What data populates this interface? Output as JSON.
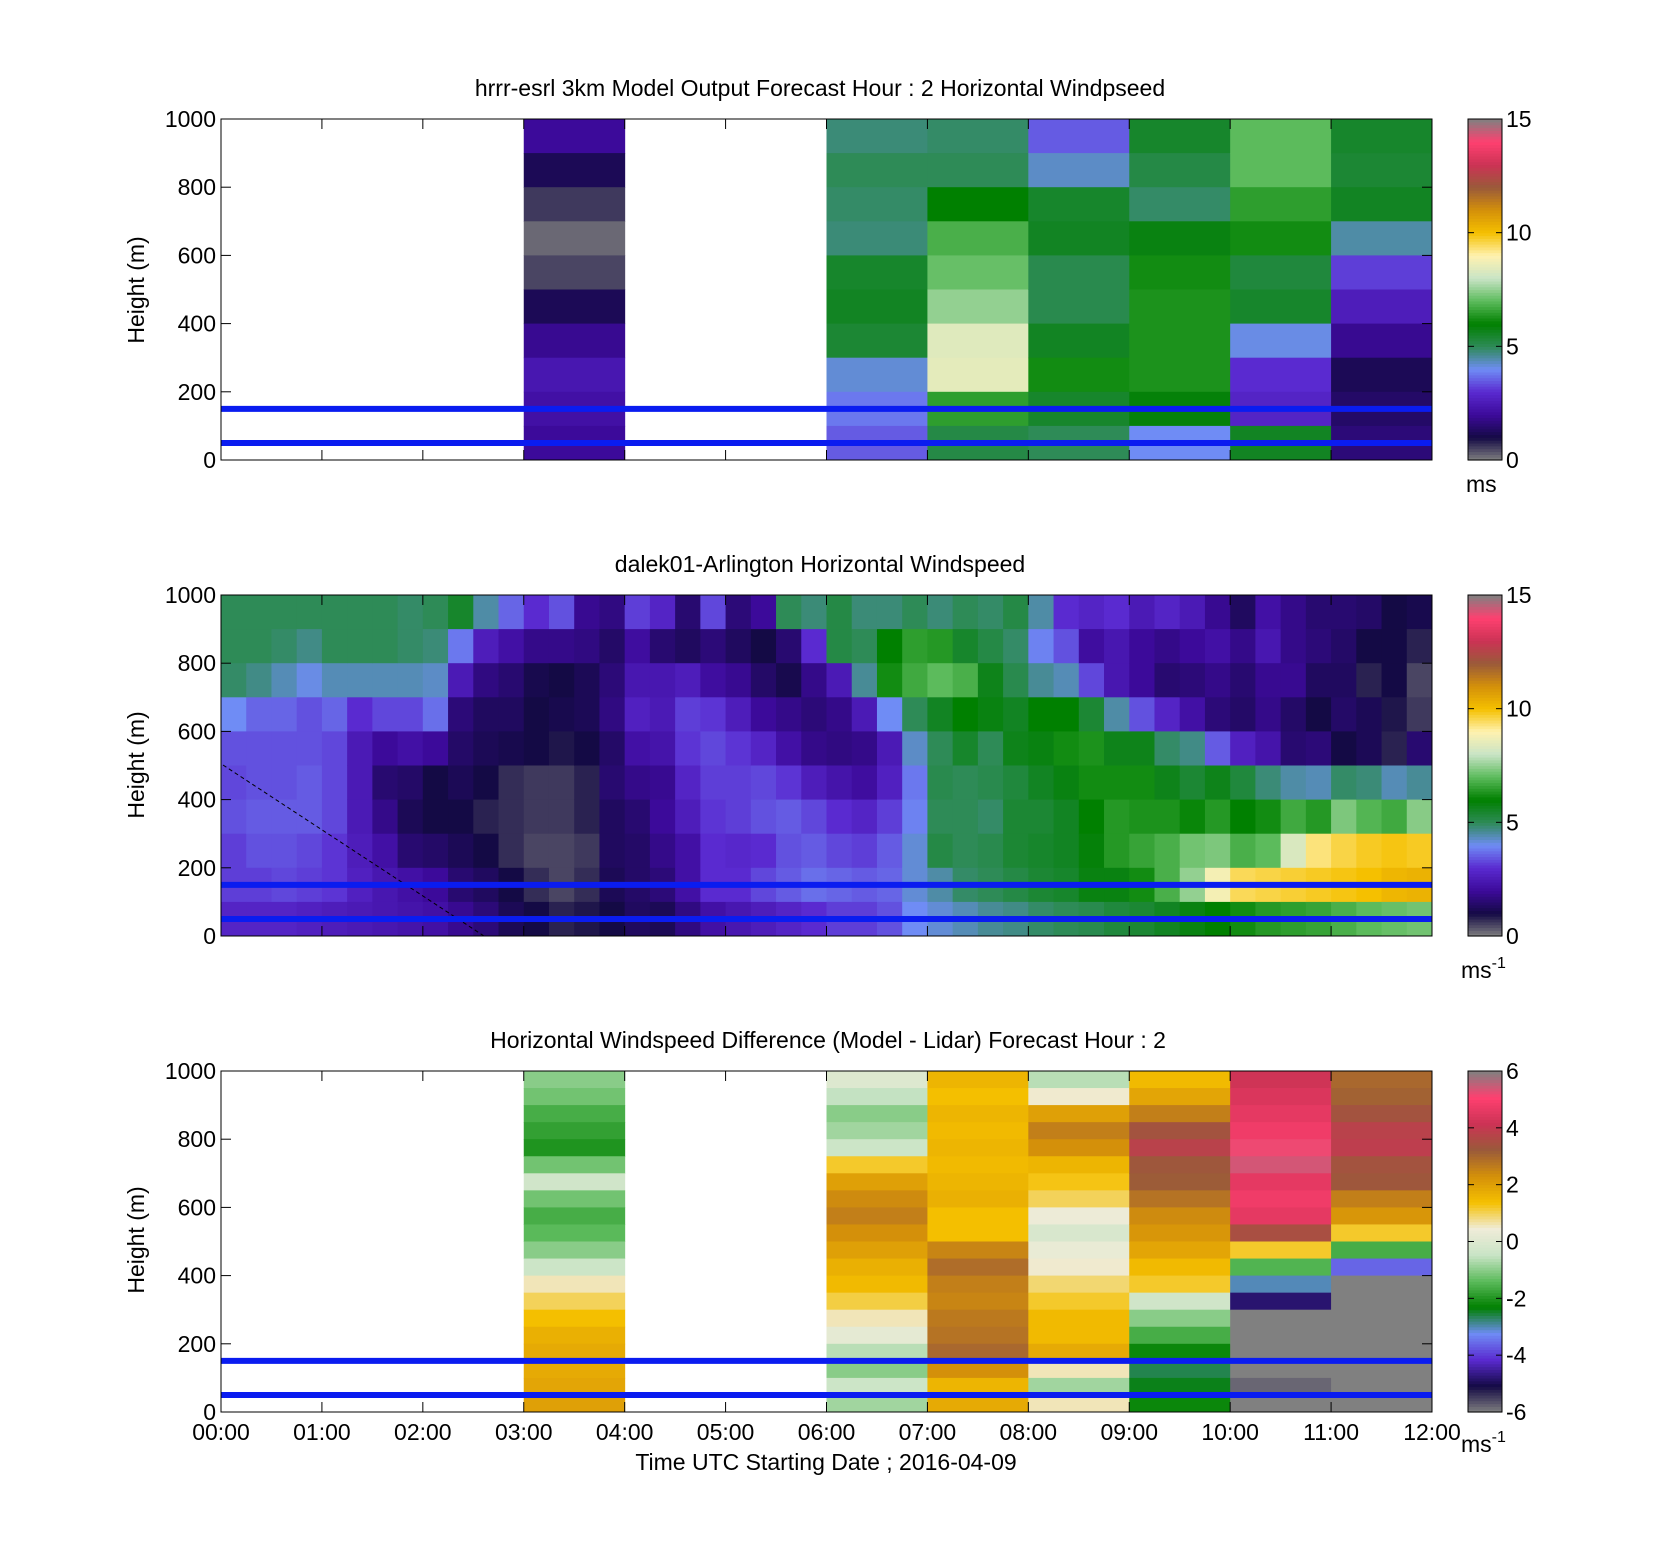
{
  "figure": {
    "xaxis_ticks": [
      "00:00",
      "01:00",
      "02:00",
      "03:00",
      "04:00",
      "05:00",
      "06:00",
      "07:00",
      "08:00",
      "09:00",
      "10:00",
      "11:00",
      "12:00"
    ],
    "xlabel": "Time UTC  Starting Date ; 2016-04-09"
  },
  "colors": {
    "reference_lines": "#0a1cf0",
    "colormap_speed": [
      "#808080",
      "#140a45",
      "#3c0a9a",
      "#5a2ad0",
      "#6f8cf5",
      "#2e8b57",
      "#008000",
      "#5cbb5c",
      "#c9e4c6",
      "#fff2b0",
      "#f5c000",
      "#d4900a",
      "#9a5a3a",
      "#cc3355",
      "#ff4070",
      "#808080"
    ],
    "colormap_diff": [
      "#808080",
      "#140a45",
      "#5a2ad0",
      "#6f8cf5",
      "#008000",
      "#5cbb5c",
      "#c9e4c6",
      "#f0ecd8",
      "#f5c000",
      "#d4900a",
      "#9a5a3a",
      "#cc3355",
      "#ff4070",
      "#808080"
    ]
  },
  "chart_data": [
    {
      "type": "heatmap",
      "title": "hrrr-esrl 3km Model Output   Forecast Hour : 2 Horizontal Windpseed",
      "xlabel": "",
      "ylabel": "Height (m)",
      "ylim": [
        0,
        1000
      ],
      "yticks": [
        "0",
        "200",
        "400",
        "600",
        "800",
        "1000"
      ],
      "xlim": [
        "00:00",
        "12:00"
      ],
      "x_hours": [
        3,
        6,
        7,
        8,
        9,
        10,
        11
      ],
      "heights_m": [
        950,
        850,
        750,
        650,
        550,
        450,
        350,
        250,
        150,
        50
      ],
      "values": [
        [
          2.0,
          4.8,
          4.9,
          3.5,
          5.5,
          7.0,
          5.5
        ],
        [
          1.2,
          5.0,
          5.0,
          4.3,
          5.2,
          7.0,
          5.4
        ],
        [
          0.6,
          4.9,
          6.0,
          5.5,
          4.9,
          6.5,
          5.6
        ],
        [
          0.2,
          4.8,
          6.8,
          5.6,
          5.8,
          6.2,
          4.5
        ],
        [
          0.5,
          5.5,
          7.1,
          5.1,
          6.2,
          5.3,
          3.2
        ],
        [
          1.2,
          5.6,
          7.5,
          5.1,
          6.3,
          5.5,
          2.6
        ],
        [
          1.9,
          5.4,
          8.4,
          5.6,
          6.3,
          4.1,
          1.9
        ],
        [
          2.4,
          4.2,
          8.5,
          6.2,
          6.3,
          3.0,
          1.2
        ],
        [
          2.2,
          3.8,
          6.5,
          5.5,
          5.9,
          2.8,
          1.4
        ],
        [
          2.0,
          3.5,
          5.2,
          5.0,
          4.0,
          5.6,
          1.6
        ]
      ],
      "colorbar": {
        "ticks": [
          "0",
          "5",
          "10",
          "15"
        ],
        "range": [
          0,
          15
        ],
        "label": "ms"
      },
      "reference_lines_m": [
        50,
        150
      ]
    },
    {
      "type": "heatmap",
      "title": "dalek01-Arlington  Horizontal Windspeed",
      "xlabel": "",
      "ylabel": "Height (m)",
      "ylim": [
        0,
        1000
      ],
      "yticks": [
        "0",
        "200",
        "400",
        "600",
        "800",
        "1000"
      ],
      "xlim": [
        "00:00",
        "12:00"
      ],
      "x_hours_start": 0,
      "x_step_hours": 0.25,
      "heights_m": [
        950,
        850,
        750,
        650,
        550,
        450,
        350,
        250,
        150,
        50
      ],
      "values_by_time": [
        [
          5.0,
          5.0,
          4.9,
          4.0,
          3.4,
          3.3,
          3.4,
          3.2,
          3.2,
          2.8
        ],
        [
          5.0,
          5.0,
          4.7,
          3.6,
          3.4,
          3.4,
          3.5,
          3.4,
          3.2,
          2.8
        ],
        [
          5.0,
          4.9,
          4.4,
          3.6,
          3.4,
          3.4,
          3.5,
          3.4,
          3.3,
          2.8
        ],
        [
          5.0,
          4.7,
          4.1,
          3.4,
          3.4,
          3.5,
          3.5,
          3.3,
          3.2,
          2.7
        ],
        [
          5.0,
          5.0,
          4.4,
          3.6,
          3.3,
          3.3,
          3.3,
          3.1,
          3.1,
          2.6
        ],
        [
          5.0,
          5.0,
          4.4,
          3.0,
          2.5,
          2.5,
          2.5,
          2.6,
          2.7,
          2.5
        ],
        [
          5.0,
          5.0,
          4.4,
          3.3,
          2.0,
          1.5,
          1.8,
          2.2,
          2.4,
          2.4
        ],
        [
          4.9,
          4.9,
          4.4,
          3.3,
          2.2,
          1.4,
          1.2,
          1.5,
          2.2,
          2.3
        ],
        [
          5.0,
          4.8,
          4.3,
          3.7,
          2.0,
          1.0,
          1.0,
          1.4,
          2.0,
          2.2
        ],
        [
          5.5,
          3.8,
          2.5,
          1.6,
          1.4,
          1.2,
          1.0,
          1.2,
          1.5,
          1.9
        ],
        [
          4.5,
          2.6,
          1.7,
          1.3,
          1.2,
          1.0,
          0.8,
          1.0,
          1.3,
          1.6
        ],
        [
          3.6,
          2.2,
          1.5,
          1.3,
          1.1,
          0.7,
          0.7,
          0.7,
          1.0,
          1.2
        ],
        [
          3.0,
          1.8,
          1.1,
          1.0,
          1.0,
          0.6,
          0.6,
          0.5,
          0.7,
          1.0
        ],
        [
          3.4,
          1.8,
          1.0,
          1.1,
          0.9,
          0.6,
          0.6,
          0.5,
          0.5,
          0.8
        ],
        [
          1.9,
          1.7,
          1.2,
          1.2,
          1.0,
          0.8,
          0.8,
          0.6,
          0.7,
          0.9
        ],
        [
          1.7,
          1.4,
          1.6,
          1.7,
          1.4,
          1.5,
          1.3,
          1.3,
          1.2,
          1.0
        ],
        [
          3.2,
          2.1,
          2.4,
          2.7,
          2.2,
          1.8,
          1.5,
          1.4,
          1.4,
          1.3
        ],
        [
          2.8,
          1.5,
          2.4,
          2.5,
          2.3,
          1.9,
          2.0,
          1.8,
          1.6,
          1.2
        ],
        [
          1.5,
          1.3,
          2.6,
          3.2,
          3.1,
          2.8,
          2.6,
          2.2,
          2.2,
          1.7
        ],
        [
          3.3,
          1.6,
          2.1,
          3.1,
          3.3,
          3.2,
          3.1,
          3.0,
          3.0,
          2.2
        ],
        [
          1.6,
          1.3,
          1.9,
          2.6,
          3.1,
          3.2,
          3.2,
          2.9,
          3.0,
          2.4
        ],
        [
          2.0,
          1.0,
          1.4,
          2.0,
          2.8,
          3.3,
          3.4,
          3.0,
          3.3,
          2.6
        ],
        [
          5.0,
          1.5,
          1.1,
          1.8,
          2.2,
          3.1,
          3.5,
          3.4,
          3.5,
          2.8
        ],
        [
          4.8,
          3.0,
          1.8,
          1.6,
          1.8,
          2.6,
          3.3,
          3.5,
          3.7,
          3.0
        ],
        [
          5.2,
          5.2,
          2.5,
          1.8,
          1.7,
          2.3,
          3.0,
          3.3,
          3.6,
          3.2
        ],
        [
          4.8,
          5.0,
          4.6,
          2.5,
          1.8,
          2.1,
          2.8,
          3.2,
          3.5,
          3.2
        ],
        [
          4.8,
          6.0,
          6.2,
          4.0,
          2.5,
          2.7,
          3.2,
          3.5,
          3.6,
          3.4
        ],
        [
          5.0,
          6.5,
          6.7,
          5.0,
          4.3,
          3.8,
          3.9,
          4.2,
          4.2,
          4.0
        ],
        [
          4.8,
          6.4,
          7.0,
          5.6,
          5.0,
          5.1,
          5.0,
          5.2,
          4.5,
          4.2
        ],
        [
          5.0,
          5.5,
          6.8,
          6.0,
          5.5,
          5.0,
          5.0,
          5.0,
          4.9,
          4.4
        ],
        [
          4.9,
          5.2,
          5.7,
          5.8,
          5.0,
          5.1,
          4.9,
          5.1,
          5.0,
          4.6
        ],
        [
          5.2,
          4.9,
          5.1,
          5.6,
          5.7,
          5.3,
          5.4,
          5.4,
          5.2,
          4.7
        ],
        [
          4.5,
          3.9,
          4.6,
          6.0,
          5.8,
          5.6,
          5.4,
          5.5,
          5.4,
          4.9
        ],
        [
          3.0,
          3.4,
          4.4,
          6.0,
          6.2,
          5.8,
          5.6,
          5.6,
          5.5,
          5.0
        ],
        [
          2.8,
          2.1,
          3.3,
          5.4,
          6.3,
          6.2,
          6.0,
          5.9,
          5.8,
          5.1
        ],
        [
          3.0,
          2.4,
          2.4,
          4.5,
          5.7,
          6.2,
          6.4,
          6.4,
          5.8,
          5.3
        ],
        [
          2.5,
          2.0,
          2.0,
          3.4,
          5.7,
          6.2,
          6.3,
          6.6,
          6.2,
          5.4
        ],
        [
          2.8,
          1.8,
          1.5,
          2.8,
          4.9,
          5.7,
          6.3,
          6.8,
          6.8,
          5.6
        ],
        [
          2.5,
          2.0,
          1.6,
          2.2,
          4.7,
          5.4,
          6.1,
          7.2,
          7.5,
          5.8
        ],
        [
          1.9,
          2.2,
          1.8,
          1.6,
          3.5,
          5.7,
          6.4,
          7.3,
          8.8,
          6.0
        ],
        [
          1.3,
          1.8,
          1.5,
          1.4,
          2.7,
          5.3,
          6.0,
          6.8,
          9.5,
          6.2
        ],
        [
          2.2,
          2.4,
          1.9,
          1.8,
          2.3,
          4.8,
          6.2,
          7.0,
          9.6,
          6.4
        ],
        [
          1.8,
          1.8,
          1.9,
          1.4,
          1.5,
          4.5,
          6.7,
          8.3,
          9.7,
          6.5
        ],
        [
          1.5,
          1.6,
          1.3,
          1.0,
          1.6,
          4.4,
          6.4,
          9.3,
          9.8,
          6.6
        ],
        [
          1.5,
          1.4,
          1.3,
          1.4,
          1.0,
          4.9,
          7.3,
          9.6,
          9.9,
          6.8
        ],
        [
          1.4,
          1.0,
          0.8,
          1.2,
          1.2,
          4.8,
          6.9,
          9.8,
          10.0,
          7.0
        ],
        [
          1.0,
          1.0,
          1.0,
          0.9,
          0.8,
          4.4,
          6.7,
          9.9,
          10.2,
          7.1
        ],
        [
          1.1,
          0.8,
          0.5,
          0.6,
          1.5,
          4.6,
          7.4,
          9.8,
          10.3,
          7.2
        ]
      ],
      "colorbar": {
        "ticks": [
          "0",
          "5",
          "10",
          "15"
        ],
        "range": [
          0,
          15
        ],
        "label": "ms-1"
      },
      "reference_lines_m": [
        50,
        150
      ]
    },
    {
      "type": "heatmap",
      "title": "Horizontal Windspeed Difference (Model - Lidar) Forecast Hour : 2",
      "xlabel": "Time UTC  Starting Date ; 2016-04-09",
      "ylabel": "Height (m)",
      "ylim": [
        0,
        1000
      ],
      "yticks": [
        "0",
        "200",
        "400",
        "600",
        "800",
        "1000"
      ],
      "xlim": [
        "00:00",
        "12:00"
      ],
      "x_hours": [
        3,
        6,
        7,
        8,
        9,
        10,
        11
      ],
      "heights_m": [
        975,
        925,
        875,
        825,
        775,
        725,
        675,
        625,
        575,
        525,
        475,
        425,
        375,
        325,
        275,
        225,
        175,
        125,
        75,
        25
      ],
      "values": [
        [
          -1.0,
          0.0,
          1.6,
          -0.6,
          1.5,
          4.2,
          3.0
        ],
        [
          -1.2,
          -0.5,
          1.4,
          0.5,
          1.9,
          4.4,
          3.1
        ],
        [
          -1.6,
          -1.0,
          1.6,
          2.0,
          2.6,
          4.6,
          3.4
        ],
        [
          -1.8,
          -0.8,
          1.5,
          2.6,
          3.4,
          4.8,
          3.8
        ],
        [
          -2.0,
          -0.4,
          1.6,
          2.3,
          3.8,
          5.2,
          3.9
        ],
        [
          -1.2,
          1.2,
          1.5,
          1.6,
          3.3,
          5.4,
          3.4
        ],
        [
          -0.3,
          2.0,
          1.6,
          1.3,
          3.2,
          4.6,
          3.3
        ],
        [
          -1.2,
          2.4,
          1.7,
          1.0,
          2.8,
          4.8,
          2.6
        ],
        [
          -1.6,
          2.6,
          1.4,
          0.4,
          2.4,
          4.6,
          2.2
        ],
        [
          -1.4,
          2.3,
          1.4,
          -0.1,
          2.2,
          3.5,
          1.2
        ],
        [
          -1.0,
          2.0,
          2.5,
          0.3,
          1.9,
          1.2,
          -1.6
        ],
        [
          -0.4,
          1.7,
          2.9,
          0.5,
          1.5,
          -1.5,
          -3.6
        ],
        [
          0.6,
          1.5,
          2.6,
          0.9,
          1.2,
          -3.0,
          -6.2
        ],
        [
          1.0,
          1.1,
          2.5,
          1.2,
          -0.3,
          -4.8,
          -6.2
        ],
        [
          1.4,
          0.6,
          2.7,
          1.5,
          -1.0,
          -6.2,
          -6.2
        ],
        [
          1.7,
          0.2,
          2.8,
          1.5,
          -1.6,
          -6.2,
          -6.2
        ],
        [
          1.8,
          -0.6,
          3.0,
          1.8,
          -2.2,
          -6.2,
          -6.2
        ],
        [
          1.8,
          -1.0,
          2.3,
          0.6,
          -2.6,
          -6.2,
          -6.2
        ],
        [
          1.9,
          -0.4,
          1.6,
          -0.8,
          -2.4,
          -5.8,
          -6.2
        ],
        [
          2.0,
          -0.8,
          1.8,
          0.6,
          -2.2,
          -6.2,
          -6.2
        ]
      ],
      "colorbar": {
        "ticks": [
          "-6",
          "-4",
          "-2",
          "0",
          "2",
          "4",
          "6"
        ],
        "range": [
          -6,
          6
        ],
        "label": "ms-1"
      },
      "reference_lines_m": [
        50,
        150
      ]
    }
  ]
}
